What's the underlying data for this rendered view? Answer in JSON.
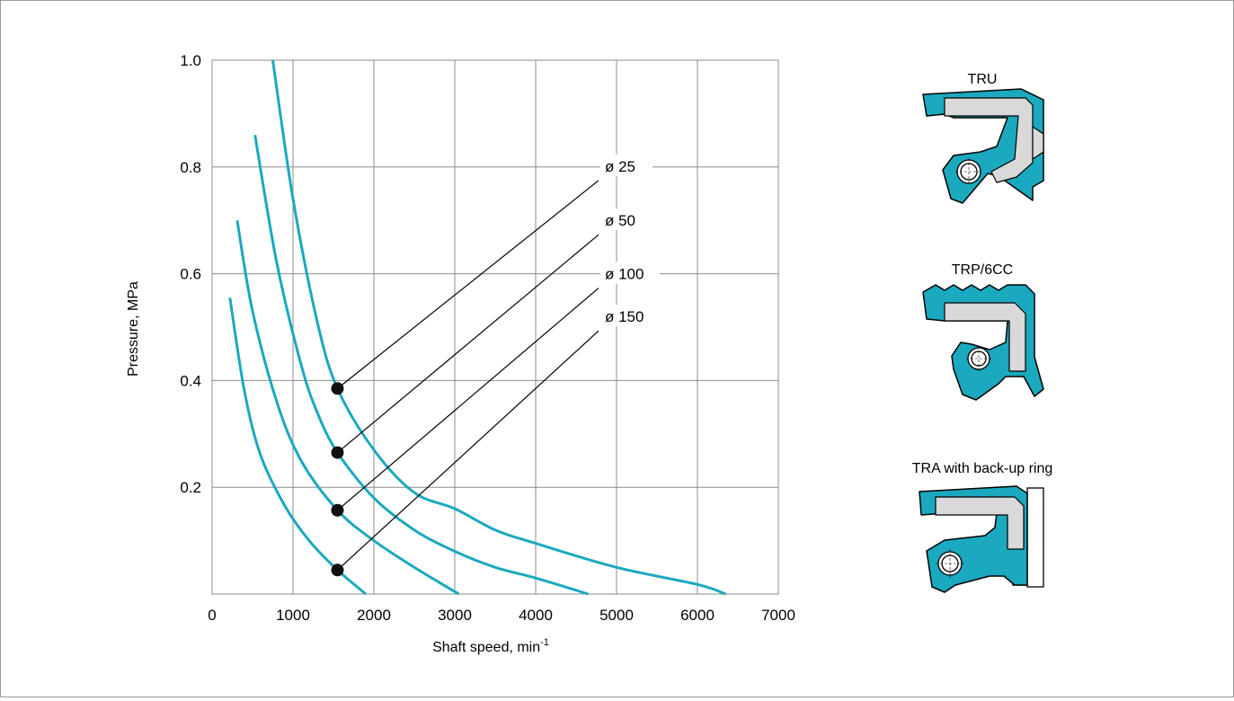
{
  "chart_data": {
    "type": "line",
    "xlabel": "Shaft speed, min",
    "xlabel_sup": "-1",
    "ylabel": "Pressure,   MPa",
    "xlim": [
      0,
      7000
    ],
    "ylim": [
      0,
      1.0
    ],
    "x_ticks": [
      0,
      1000,
      2000,
      3000,
      4000,
      5000,
      6000,
      7000
    ],
    "y_ticks": [
      0.2,
      0.4,
      0.6,
      0.8,
      1.0
    ],
    "y_tick_labels": [
      "0.2",
      "0.4",
      "0.6",
      "0.8",
      "1.0"
    ],
    "grid": true,
    "marker_x": 1550,
    "series": [
      {
        "name": "ø 25",
        "label_y": 0.8,
        "marker_y": 0.385,
        "points": [
          [
            750,
            1.0
          ],
          [
            1000,
            0.74
          ],
          [
            1300,
            0.51
          ],
          [
            1550,
            0.385
          ],
          [
            2000,
            0.27
          ],
          [
            2500,
            0.19
          ],
          [
            3000,
            0.16
          ],
          [
            3500,
            0.12
          ],
          [
            4000,
            0.095
          ],
          [
            5000,
            0.05
          ],
          [
            6000,
            0.018
          ],
          [
            6350,
            0.0
          ]
        ]
      },
      {
        "name": "ø 50",
        "label_y": 0.7,
        "marker_y": 0.265,
        "points": [
          [
            530,
            0.86
          ],
          [
            800,
            0.62
          ],
          [
            1100,
            0.43
          ],
          [
            1300,
            0.34
          ],
          [
            1550,
            0.265
          ],
          [
            2000,
            0.18
          ],
          [
            2500,
            0.12
          ],
          [
            3000,
            0.08
          ],
          [
            3500,
            0.05
          ],
          [
            4000,
            0.03
          ],
          [
            4650,
            0.0
          ]
        ]
      },
      {
        "name": "ø 100",
        "label_y": 0.6,
        "marker_y": 0.157,
        "points": [
          [
            310,
            0.7
          ],
          [
            500,
            0.53
          ],
          [
            800,
            0.36
          ],
          [
            1100,
            0.25
          ],
          [
            1550,
            0.157
          ],
          [
            2000,
            0.1
          ],
          [
            2500,
            0.05
          ],
          [
            3050,
            0.0
          ]
        ]
      },
      {
        "name": "ø 150",
        "label_y": 0.52,
        "marker_y": 0.045,
        "points": [
          [
            220,
            0.555
          ],
          [
            400,
            0.38
          ],
          [
            600,
            0.26
          ],
          [
            900,
            0.165
          ],
          [
            1200,
            0.1
          ],
          [
            1550,
            0.045
          ],
          [
            1900,
            0.0
          ]
        ]
      }
    ]
  },
  "seals": [
    {
      "label": "TRU"
    },
    {
      "label": "TRP/6CC"
    },
    {
      "label": "TRA with back-up ring"
    }
  ]
}
